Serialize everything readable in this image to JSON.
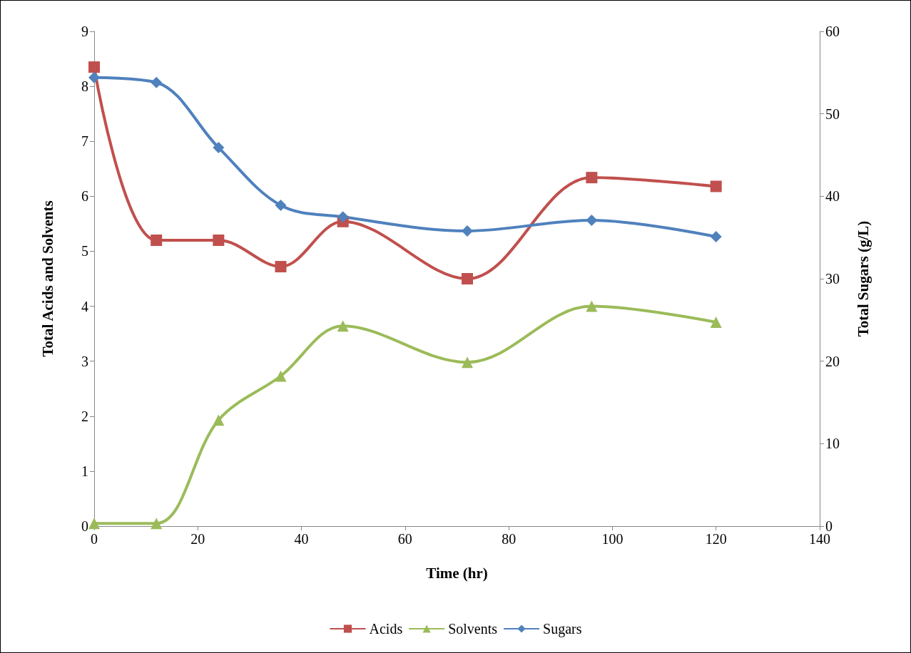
{
  "chart_data": {
    "type": "line",
    "xlabel": "Time (hr)",
    "ylabel": "Total Acids and Solvents",
    "y2label": "Total Sugars (g/L)",
    "x": [
      0,
      12,
      24,
      36,
      48,
      72,
      96,
      120
    ],
    "series": [
      {
        "name": "Acids",
        "color": "#c0504d",
        "marker": "square",
        "values": [
          8.35,
          5.2,
          5.2,
          4.72,
          5.54,
          4.5,
          6.34,
          6.18
        ]
      },
      {
        "name": "Solvents",
        "color": "#9bbb59",
        "marker": "triangle",
        "values": [
          0.05,
          0.05,
          1.93,
          2.73,
          3.64,
          2.98,
          4.0,
          3.71
        ]
      },
      {
        "name": "Sugars",
        "color": "#4f81bd",
        "marker": "diamond",
        "axis": "y2",
        "values": [
          54.4,
          53.8,
          45.9,
          38.9,
          37.5,
          35.8,
          37.1,
          35.1
        ]
      }
    ],
    "xlim": [
      0,
      140
    ],
    "xticks": [
      0,
      20,
      40,
      60,
      80,
      100,
      120,
      140
    ],
    "ylim": [
      0,
      9
    ],
    "yticks": [
      0,
      1,
      2,
      3,
      4,
      5,
      6,
      7,
      8,
      9
    ],
    "y2lim": [
      0,
      60
    ],
    "y2ticks": [
      0,
      10,
      20,
      30,
      40,
      50,
      60
    ],
    "legend": "bottom",
    "grid": false
  }
}
